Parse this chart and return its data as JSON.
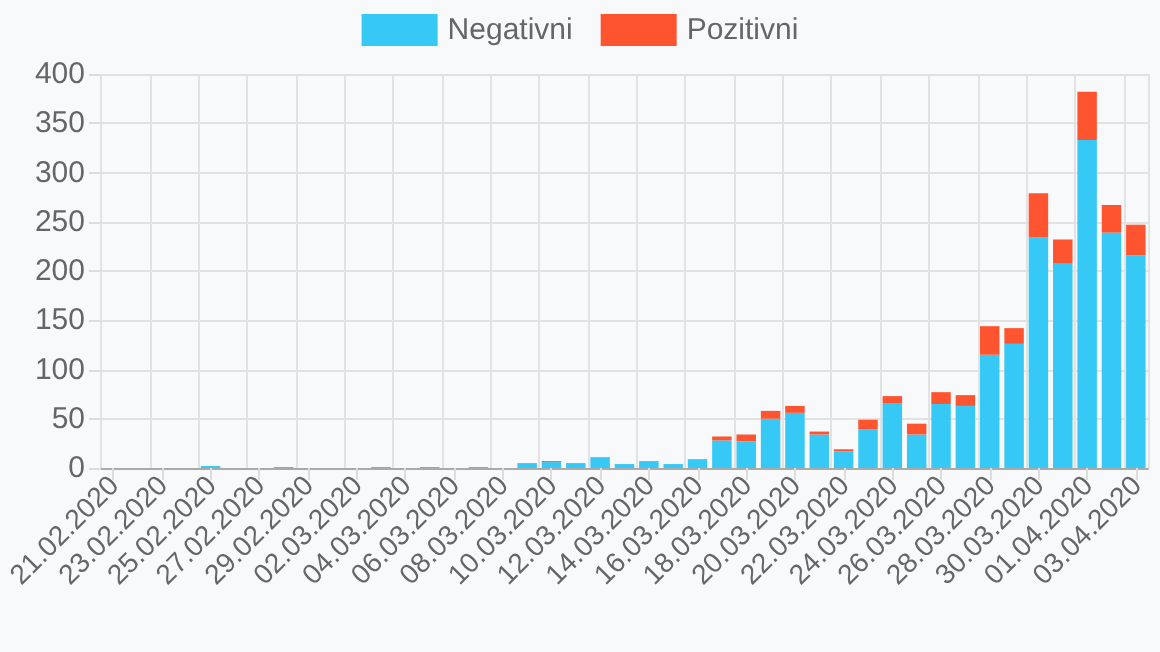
{
  "chart_data": {
    "type": "bar",
    "stacked": true,
    "categories": [
      "21.02.2020",
      null,
      "23.02.2020",
      null,
      "25.02.2020",
      null,
      "27.02.2020",
      null,
      "29.02.2020",
      null,
      "02.03.2020",
      null,
      "04.03.2020",
      null,
      "06.03.2020",
      null,
      "08.03.2020",
      null,
      "10.03.2020",
      null,
      "12.03.2020",
      null,
      "14.03.2020",
      null,
      "16.03.2020",
      null,
      "18.03.2020",
      null,
      "20.03.2020",
      null,
      "22.03.2020",
      null,
      "24.03.2020",
      null,
      "26.03.2020",
      null,
      "28.03.2020",
      null,
      "30.03.2020",
      null,
      "01.04.2020",
      null,
      "03.04.2020"
    ],
    "series": [
      {
        "name": "Negativni",
        "color": "#36c9f5",
        "values": [
          0,
          0,
          0,
          0,
          2,
          0,
          0,
          1,
          0,
          0,
          0,
          1,
          0,
          1,
          0,
          1,
          0,
          5,
          6,
          5,
          11,
          4,
          7,
          4,
          9,
          28,
          27,
          50,
          56,
          34,
          17,
          39,
          66,
          34,
          65,
          63,
          115,
          126,
          234,
          208,
          333,
          239,
          216
        ]
      },
      {
        "name": "Pozitivni",
        "color": "#fe5530",
        "values": [
          0,
          0,
          0,
          0,
          0,
          0,
          0,
          0,
          0,
          0,
          0,
          0,
          0,
          0,
          0,
          0,
          0,
          0,
          1,
          0,
          0,
          0,
          0,
          0,
          0,
          4,
          7,
          8,
          7,
          3,
          2,
          10,
          7,
          11,
          12,
          11,
          29,
          16,
          45,
          24,
          49,
          28,
          31
        ]
      }
    ],
    "ylim": [
      0,
      400
    ],
    "yticks": [
      0,
      50,
      100,
      150,
      200,
      250,
      300,
      350,
      400
    ],
    "grid": true,
    "legend": "top"
  }
}
